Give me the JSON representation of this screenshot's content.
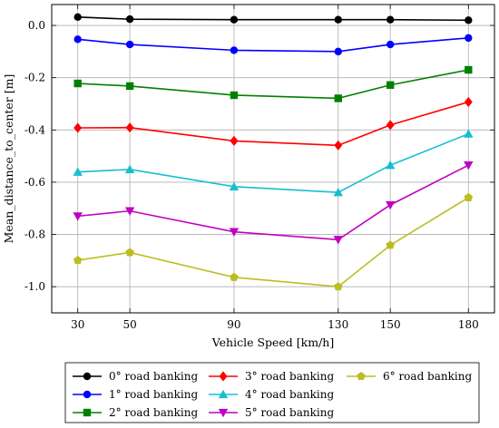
{
  "chart_data": {
    "type": "line",
    "xlabel": "Vehicle Speed [km/h]",
    "ylabel": "Mean_distance_to_center [m]",
    "x": [
      30,
      50,
      90,
      130,
      150,
      180
    ],
    "xticks": [
      "30",
      "50",
      "90",
      "130",
      "150",
      "180"
    ],
    "ylim": [
      -1.1,
      0.08
    ],
    "yticks": [
      "0.0",
      "-0.2",
      "-0.4",
      "-0.6",
      "-0.8",
      "-1.0"
    ],
    "ytick_values": [
      0.0,
      -0.2,
      -0.4,
      -0.6,
      -0.8,
      -1.0
    ],
    "grid": true,
    "legend_position": "bottom",
    "series": [
      {
        "name": "0° road banking",
        "color": "#000000",
        "marker": "circle",
        "values": [
          0.032,
          0.024,
          0.022,
          0.022,
          0.022,
          0.02
        ]
      },
      {
        "name": "1° road banking",
        "color": "#0000ff",
        "marker": "circle",
        "values": [
          -0.053,
          -0.073,
          -0.095,
          -0.1,
          -0.073,
          -0.048
        ]
      },
      {
        "name": "2° road banking",
        "color": "#008000",
        "marker": "square",
        "values": [
          -0.222,
          -0.232,
          -0.267,
          -0.279,
          -0.228,
          -0.17
        ]
      },
      {
        "name": "3° road banking",
        "color": "#ff0000",
        "marker": "diamond",
        "values": [
          -0.392,
          -0.391,
          -0.442,
          -0.459,
          -0.381,
          -0.293
        ]
      },
      {
        "name": "4° road banking",
        "color": "#17becf",
        "marker": "triangle-up",
        "values": [
          -0.561,
          -0.551,
          -0.617,
          -0.639,
          -0.535,
          -0.415
        ]
      },
      {
        "name": "5° road banking",
        "color": "#c000c0",
        "marker": "triangle-down",
        "values": [
          -0.73,
          -0.71,
          -0.79,
          -0.82,
          -0.687,
          -0.535
        ]
      },
      {
        "name": "6° road banking",
        "color": "#bcbd22",
        "marker": "pentagon",
        "values": [
          -0.899,
          -0.869,
          -0.964,
          -1.0,
          -0.841,
          -0.659
        ]
      }
    ]
  }
}
